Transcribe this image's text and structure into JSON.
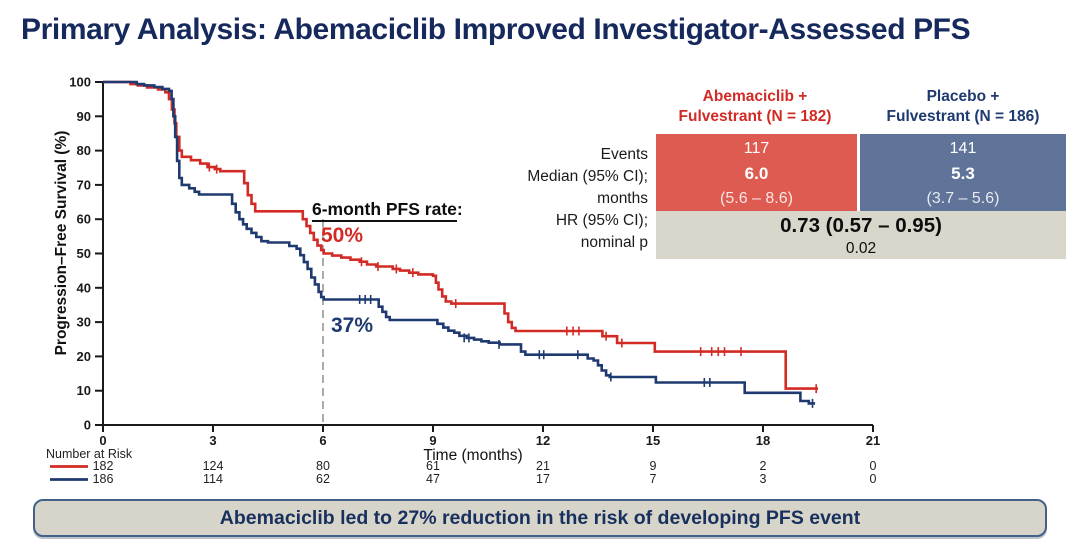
{
  "title": "Primary Analysis: Abemaciclib Improved Investigator-Assessed PFS",
  "summary_table": {
    "row_labels": [
      "Events",
      "Median (95% CI);",
      "months",
      "HR (95% CI);",
      "nominal p"
    ],
    "columns": [
      {
        "header_line1": "Abemaciclib +",
        "header_line2": "Fulvestrant (N = 182)",
        "events": "117",
        "median": "6.0",
        "median_ci": "(5.6 – 8.6)",
        "fill_color": "#dd5b51",
        "text_color": "#d22b25"
      },
      {
        "header_line1": "Placebo +",
        "header_line2": "Fulvestrant (N = 186)",
        "events": "141",
        "median": "5.3",
        "median_ci": "(3.7 – 5.6)",
        "fill_color": "#60749a",
        "text_color": "#1f3a70"
      }
    ],
    "hr_value": "0.73 (0.57 – 0.95)",
    "p_value": "0.02"
  },
  "chart_data": {
    "type": "line",
    "subtype": "kaplan-meier-step",
    "xlabel": "Time (months)",
    "ylabel": "Progression–Free Survival (%)",
    "xlim": [
      0,
      21
    ],
    "ylim": [
      0,
      100
    ],
    "x_ticks": [
      0,
      3,
      6,
      9,
      12,
      15,
      18,
      21
    ],
    "y_ticks": [
      0,
      10,
      20,
      30,
      40,
      50,
      60,
      70,
      80,
      90,
      100
    ],
    "grid": false,
    "reference_line": {
      "x": 6,
      "style": "dashed",
      "color": "#909090"
    },
    "annotations": {
      "six_month_label": "6-month PFS rate",
      "colon": ":",
      "abemaciclib_rate": "50%",
      "placebo_rate": "37%"
    },
    "series": [
      {
        "name": "Abemaciclib + Fulvestrant",
        "color": "#d22b25",
        "six_month_pfs_pct": 50,
        "steps": [
          [
            0,
            100
          ],
          [
            0.62,
            100
          ],
          [
            0.75,
            99.4
          ],
          [
            0.95,
            99
          ],
          [
            1.2,
            98.4
          ],
          [
            1.5,
            97.8
          ],
          [
            1.7,
            97
          ],
          [
            1.8,
            95
          ],
          [
            1.88,
            92
          ],
          [
            1.95,
            88
          ],
          [
            2.0,
            84
          ],
          [
            2.08,
            80
          ],
          [
            2.15,
            78.2
          ],
          [
            2.4,
            77.2
          ],
          [
            2.65,
            76.2
          ],
          [
            2.85,
            75.2
          ],
          [
            3.05,
            74.6
          ],
          [
            3.2,
            74
          ],
          [
            3.78,
            74
          ],
          [
            3.85,
            70.5
          ],
          [
            3.95,
            67
          ],
          [
            4.05,
            64.5
          ],
          [
            4.15,
            62.3
          ],
          [
            5.35,
            62.3
          ],
          [
            5.45,
            60
          ],
          [
            5.55,
            58
          ],
          [
            5.65,
            56
          ],
          [
            5.75,
            54
          ],
          [
            5.85,
            52.3
          ],
          [
            5.95,
            51
          ],
          [
            6.02,
            50
          ],
          [
            6.25,
            49.4
          ],
          [
            6.5,
            48.8
          ],
          [
            6.75,
            48.2
          ],
          [
            7.0,
            47.6
          ],
          [
            7.2,
            46.8
          ],
          [
            7.45,
            46.2
          ],
          [
            7.9,
            45.5
          ],
          [
            8.1,
            45
          ],
          [
            8.35,
            44.4
          ],
          [
            8.6,
            43.9
          ],
          [
            9.0,
            43.5
          ],
          [
            9.08,
            41.5
          ],
          [
            9.15,
            39.5
          ],
          [
            9.25,
            37.5
          ],
          [
            9.35,
            36
          ],
          [
            9.5,
            35.4
          ],
          [
            10.85,
            35.4
          ],
          [
            10.95,
            32.5
          ],
          [
            11.05,
            30
          ],
          [
            11.15,
            28.3
          ],
          [
            11.25,
            27.4
          ],
          [
            13.55,
            27.4
          ],
          [
            13.62,
            25.9
          ],
          [
            13.95,
            25.9
          ],
          [
            14.02,
            23.9
          ],
          [
            14.95,
            23.9
          ],
          [
            15.05,
            21.4
          ],
          [
            18.55,
            21.4
          ],
          [
            18.62,
            10.6
          ],
          [
            19.5,
            10.6
          ]
        ],
        "censors": [
          [
            2.9,
            75.2
          ],
          [
            3.1,
            74.6
          ],
          [
            7.05,
            47.6
          ],
          [
            7.5,
            46.2
          ],
          [
            8.0,
            45.5
          ],
          [
            8.45,
            44.4
          ],
          [
            9.62,
            35.4
          ],
          [
            12.65,
            27.4
          ],
          [
            12.82,
            27.4
          ],
          [
            12.98,
            27.4
          ],
          [
            13.72,
            25.9
          ],
          [
            14.15,
            23.9
          ],
          [
            16.3,
            21.4
          ],
          [
            16.6,
            21.4
          ],
          [
            16.78,
            21.4
          ],
          [
            16.95,
            21.4
          ],
          [
            17.4,
            21.4
          ],
          [
            19.45,
            10.6
          ]
        ]
      },
      {
        "name": "Placebo + Fulvestrant",
        "color": "#1f3a70",
        "six_month_pfs_pct": 37,
        "steps": [
          [
            0,
            100
          ],
          [
            0.78,
            100
          ],
          [
            0.92,
            99.4
          ],
          [
            1.12,
            99
          ],
          [
            1.4,
            98.5
          ],
          [
            1.62,
            98
          ],
          [
            1.8,
            97.4
          ],
          [
            1.87,
            95
          ],
          [
            1.92,
            90
          ],
          [
            1.97,
            84
          ],
          [
            2.02,
            77
          ],
          [
            2.08,
            72
          ],
          [
            2.15,
            70
          ],
          [
            2.35,
            69
          ],
          [
            2.5,
            68
          ],
          [
            2.62,
            67.2
          ],
          [
            3.42,
            67.2
          ],
          [
            3.52,
            64.5
          ],
          [
            3.62,
            62
          ],
          [
            3.72,
            60
          ],
          [
            3.82,
            58.5
          ],
          [
            3.92,
            57.2
          ],
          [
            4.05,
            56
          ],
          [
            4.18,
            54.8
          ],
          [
            4.32,
            53.6
          ],
          [
            4.5,
            53.2
          ],
          [
            4.98,
            53.2
          ],
          [
            5.08,
            52.2
          ],
          [
            5.28,
            51.4
          ],
          [
            5.38,
            49.5
          ],
          [
            5.48,
            47.5
          ],
          [
            5.58,
            45.5
          ],
          [
            5.68,
            43
          ],
          [
            5.78,
            41
          ],
          [
            5.88,
            38.8
          ],
          [
            5.95,
            37.3
          ],
          [
            6.02,
            36.6
          ],
          [
            7.45,
            36.6
          ],
          [
            7.52,
            34.5
          ],
          [
            7.62,
            33
          ],
          [
            7.72,
            31.5
          ],
          [
            7.82,
            30.6
          ],
          [
            9.05,
            30.6
          ],
          [
            9.12,
            29.5
          ],
          [
            9.28,
            28.4
          ],
          [
            9.42,
            27.5
          ],
          [
            9.58,
            26.9
          ],
          [
            9.72,
            26
          ],
          [
            9.92,
            25.4
          ],
          [
            10.12,
            24.9
          ],
          [
            10.32,
            24.4
          ],
          [
            10.52,
            24
          ],
          [
            10.82,
            23.5
          ],
          [
            11.32,
            23.5
          ],
          [
            11.4,
            21.4
          ],
          [
            11.52,
            20.5
          ],
          [
            13.12,
            20.5
          ],
          [
            13.22,
            19.4
          ],
          [
            13.38,
            18.8
          ],
          [
            13.5,
            17.4
          ],
          [
            13.6,
            15.9
          ],
          [
            13.72,
            14.5
          ],
          [
            13.82,
            14
          ],
          [
            15.0,
            14
          ],
          [
            15.08,
            12.4
          ],
          [
            17.42,
            12.4
          ],
          [
            17.5,
            9.4
          ],
          [
            18.95,
            9.4
          ],
          [
            19.02,
            7
          ],
          [
            19.25,
            6.3
          ],
          [
            19.42,
            6.3
          ]
        ],
        "censors": [
          [
            7.0,
            36.6
          ],
          [
            7.15,
            36.6
          ],
          [
            7.3,
            36.6
          ],
          [
            9.85,
            25.4
          ],
          [
            9.98,
            25.4
          ],
          [
            10.8,
            23.5
          ],
          [
            11.9,
            20.5
          ],
          [
            12.02,
            20.5
          ],
          [
            12.95,
            20.5
          ],
          [
            13.85,
            14
          ],
          [
            16.4,
            12.4
          ],
          [
            16.55,
            12.4
          ],
          [
            19.35,
            6.3
          ]
        ]
      }
    ]
  },
  "risk_table": {
    "label": "Number at Risk",
    "time_points": [
      0,
      3,
      6,
      9,
      12,
      15,
      18,
      21
    ],
    "rows": [
      {
        "name": "Abemaciclib + Fulvestrant",
        "color": "#d22b25",
        "values": [
          182,
          124,
          80,
          61,
          21,
          9,
          2,
          0
        ]
      },
      {
        "name": "Placebo + Fulvestrant",
        "color": "#1f3a70",
        "values": [
          186,
          114,
          62,
          47,
          17,
          7,
          3,
          0
        ]
      }
    ]
  },
  "banner": {
    "text": "Abemaciclib led to 27% reduction in the risk of developing PFS event"
  },
  "colors": {
    "title": "#16295c",
    "abemaciclib": "#d22b25",
    "placebo": "#1f3a70",
    "abemaciclib_cell": "#dd5b51",
    "placebo_cell": "#60749a",
    "hr_cell": "#d9d6cb",
    "banner_fill": "#d7d4ca",
    "banner_border": "#44618c",
    "axis": "#1a1a1a",
    "dashed_line": "#909090"
  }
}
